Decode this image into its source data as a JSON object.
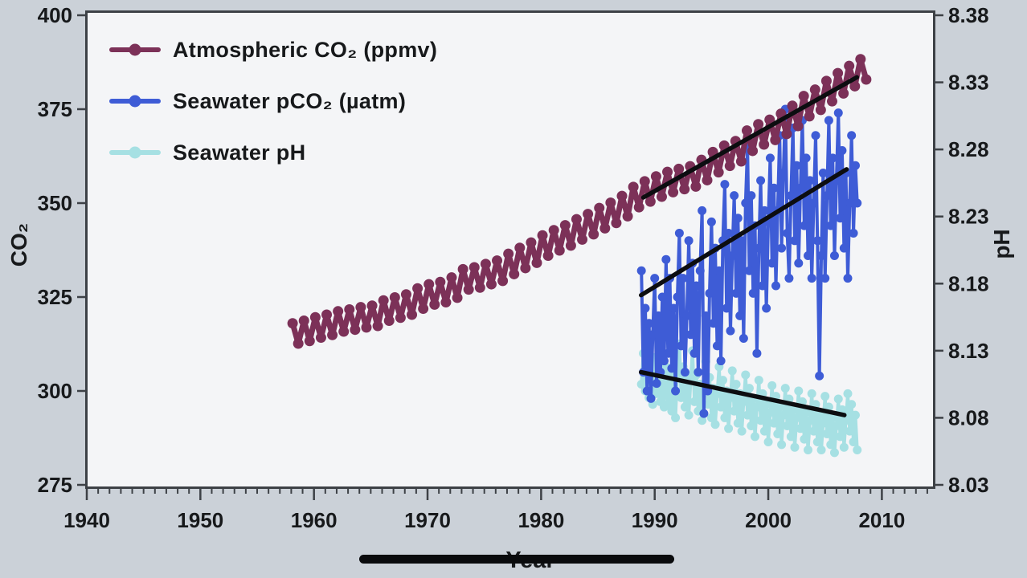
{
  "theme": {
    "background": "#cbd1d8",
    "plot_background": "#f4f5f7",
    "border_color": "#3d4146",
    "text_color": "#17191b",
    "trend_line_color": "#0c0d10"
  },
  "chart_data": {
    "type": "line",
    "xlabel": "Year",
    "ylabel_left": "CO₂",
    "ylabel_right": "pH",
    "xlim": [
      1940,
      2014.5
    ],
    "ylim_left": [
      275,
      400
    ],
    "ylim_right": [
      8.03,
      8.38
    ],
    "x_ticks": [
      1940,
      1950,
      1960,
      1970,
      1980,
      1990,
      2000,
      2010
    ],
    "x_minor_tick_step": 1,
    "y_left_ticks": [
      "400",
      "375",
      "350",
      "325",
      "300",
      "275"
    ],
    "y_right_ticks": [
      "8.38",
      "8.33",
      "8.28",
      "8.23",
      "8.18",
      "8.13",
      "8.08",
      "8.03"
    ],
    "legend_position": "top-left",
    "grid": false,
    "sample_x": [
      1988.83,
      1989,
      1989.17,
      1989.33,
      1989.5,
      1989.67,
      1989.83,
      1990,
      1990.17,
      1990.33,
      1990.5,
      1990.67,
      1990.83,
      1991,
      1991.17,
      1991.33,
      1991.5,
      1991.67,
      1991.83,
      1992,
      1992.17,
      1992.33,
      1992.5,
      1992.67,
      1992.83,
      1993,
      1993.17,
      1993.33,
      1993.5,
      1993.67,
      1993.83,
      1994,
      1994.17,
      1994.33,
      1994.5,
      1994.67,
      1994.83,
      1995,
      1995.17,
      1995.33,
      1995.5,
      1995.67,
      1995.83,
      1996,
      1996.17,
      1996.33,
      1996.5,
      1996.67,
      1996.83,
      1997,
      1997.17,
      1997.33,
      1997.5,
      1997.67,
      1997.83,
      1998,
      1998.17,
      1998.33,
      1998.5,
      1998.67,
      1998.83,
      1999,
      1999.17,
      1999.33,
      1999.5,
      1999.67,
      1999.83,
      2000,
      2000.17,
      2000.33,
      2000.5,
      2000.67,
      2000.83,
      2001,
      2001.17,
      2001.33,
      2001.5,
      2001.67,
      2001.83,
      2002,
      2002.17,
      2002.33,
      2002.5,
      2002.67,
      2002.83,
      2003,
      2003.17,
      2003.33,
      2003.5,
      2003.67,
      2003.83,
      2004,
      2004.17,
      2004.33,
      2004.5,
      2004.67,
      2004.83,
      2005,
      2005.17,
      2005.33,
      2005.5,
      2005.67,
      2005.83,
      2006,
      2006.17,
      2006.33,
      2006.5,
      2006.67,
      2006.83,
      2007,
      2007.17,
      2007.33,
      2007.5,
      2007.67,
      2007.83
    ],
    "series": [
      {
        "name": "Atmospheric CO₂ (ppmv)",
        "axis": "left",
        "color": "#7c3158",
        "style": "seasonal-band",
        "year_start": 1958,
        "cadence": "annual",
        "seasonal_amplitude": 2.7,
        "annual_mean": [
          315.3,
          316.0,
          316.9,
          317.6,
          318.5,
          319.0,
          319.6,
          320.0,
          321.4,
          322.2,
          323.0,
          324.6,
          325.7,
          326.3,
          327.5,
          329.7,
          330.2,
          331.1,
          332.0,
          333.8,
          335.4,
          336.8,
          338.7,
          340.1,
          341.4,
          343.0,
          344.4,
          346.0,
          347.4,
          349.2,
          351.6,
          353.1,
          354.4,
          355.6,
          356.4,
          357.1,
          358.8,
          360.9,
          362.6,
          363.8,
          366.6,
          368.3,
          369.5,
          371.1,
          373.2,
          375.8,
          377.5,
          379.8,
          381.9,
          383.8,
          385.6
        ]
      },
      {
        "name": "Seawater pCO₂ (µatm)",
        "axis": "left",
        "color": "#3e5cd6",
        "style": "noisy-line",
        "uses": "sample_x",
        "values": [
          332,
          305,
          322,
          300,
          318,
          298,
          315,
          330,
          302,
          320,
          305,
          325,
          308,
          335,
          310,
          330,
          306,
          322,
          300,
          325,
          342,
          312,
          330,
          305,
          320,
          340,
          315,
          334,
          310,
          328,
          305,
          332,
          348,
          294,
          320,
          300,
          326,
          345,
          318,
          338,
          312,
          332,
          308,
          340,
          355,
          322,
          342,
          316,
          336,
          352,
          326,
          346,
          320,
          340,
          314,
          350,
          365,
          332,
          352,
          326,
          344,
          310,
          338,
          356,
          328,
          348,
          322,
          345,
          362,
          334,
          354,
          328,
          348,
          368,
          338,
          358,
          375,
          342,
          330,
          352,
          370,
          340,
          360,
          334,
          354,
          372,
          344,
          362,
          336,
          356,
          330,
          350,
          368,
          340,
          304,
          336,
          358,
          330,
          352,
          372,
          344,
          362,
          336,
          356,
          374,
          346,
          364,
          338,
          358,
          330,
          350,
          368,
          342,
          360,
          350
        ]
      },
      {
        "name": "Seawater pH",
        "axis": "right",
        "color": "#a6e0e3",
        "style": "noisy-line",
        "uses": "sample_x",
        "values": [
          8.105,
          8.128,
          8.1,
          8.122,
          8.095,
          8.118,
          8.09,
          8.125,
          8.098,
          8.12,
          8.092,
          8.115,
          8.088,
          8.118,
          8.09,
          8.112,
          8.085,
          8.108,
          8.08,
          8.115,
          8.135,
          8.095,
          8.118,
          8.088,
          8.11,
          8.082,
          8.108,
          8.13,
          8.092,
          8.112,
          8.085,
          8.105,
          8.078,
          8.1,
          8.122,
          8.09,
          8.11,
          8.08,
          8.102,
          8.075,
          8.098,
          8.118,
          8.088,
          8.108,
          8.08,
          8.1,
          8.072,
          8.095,
          8.115,
          8.085,
          8.105,
          8.076,
          8.098,
          8.07,
          8.092,
          8.112,
          8.082,
          8.102,
          8.074,
          8.094,
          8.066,
          8.088,
          8.108,
          8.078,
          8.098,
          8.07,
          8.09,
          8.062,
          8.084,
          8.104,
          8.076,
          8.096,
          8.068,
          8.088,
          8.06,
          8.082,
          8.102,
          8.074,
          8.094,
          8.066,
          8.086,
          8.058,
          8.08,
          8.1,
          8.072,
          8.092,
          8.064,
          8.084,
          8.056,
          8.078,
          8.098,
          8.07,
          8.09,
          8.062,
          8.082,
          8.056,
          8.076,
          8.096,
          8.068,
          8.088,
          8.06,
          8.08,
          8.054,
          8.074,
          8.094,
          8.066,
          8.086,
          8.058,
          8.078,
          8.098,
          8.07,
          8.09,
          8.062,
          8.082,
          8.056
        ]
      }
    ],
    "trend_lines": [
      {
        "series": "Atmospheric CO₂ (ppmv)",
        "axis": "left",
        "x": [
          1989,
          2007.8
        ],
        "values": [
          351.5,
          383.5
        ]
      },
      {
        "series": "Seawater pCO₂ (µatm)",
        "axis": "left",
        "x": [
          1988.8,
          2006.9
        ],
        "values": [
          325.5,
          359
        ]
      },
      {
        "series": "Seawater pH",
        "axis": "right",
        "x": [
          1988.8,
          2006.7
        ],
        "values": [
          8.114,
          8.082
        ]
      }
    ]
  }
}
